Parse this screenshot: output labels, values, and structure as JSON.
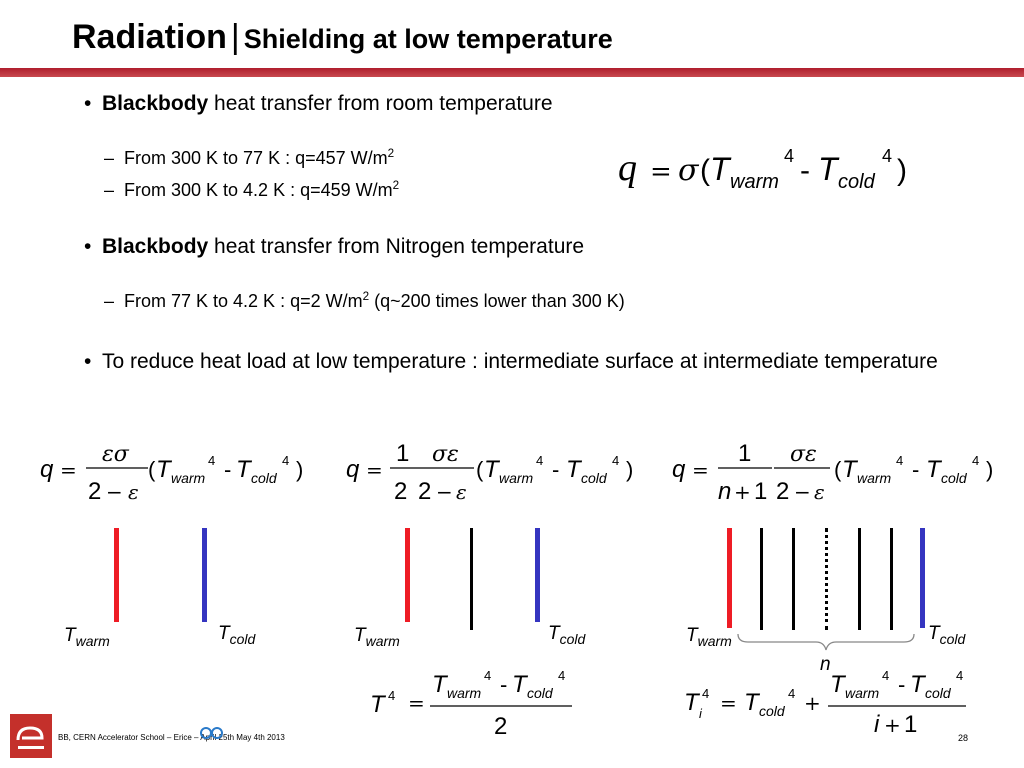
{
  "title": {
    "main": "Radiation",
    "separator": "|",
    "sub": "Shielding at low temperature"
  },
  "bullets": [
    {
      "bold": "Blackbody",
      "text": " heat transfer from room temperature"
    },
    {
      "bold": "Blackbody",
      "text": " heat transfer from Nitrogen temperature"
    },
    {
      "bold": "",
      "text": "To reduce heat load at low temperature : intermediate surface at intermediate temperature"
    }
  ],
  "sub_bullets": [
    {
      "text": "From 300 K to 77 K : q=457 W/m",
      "sup": "2",
      "tail": ""
    },
    {
      "text": "From 300 K to 4.2 K : q=459 W/m",
      "sup": "2",
      "tail": ""
    },
    {
      "text": "From 77 K to 4.2 K : q=2 W/m",
      "sup": "2",
      "tail": " (q~200 times lower than 300 K)"
    }
  ],
  "labels": {
    "warm": "warm",
    "cold": "cold",
    "T": "T",
    "n": "n"
  },
  "colors": {
    "title_rule": "#b01e2d",
    "warm_plate": "#ee1c25",
    "cold_plate": "#3535c0"
  },
  "footer": {
    "text": "BB, CERN Accelerator School  – Erice – April 25th  May 4th 2013",
    "page": "28"
  }
}
